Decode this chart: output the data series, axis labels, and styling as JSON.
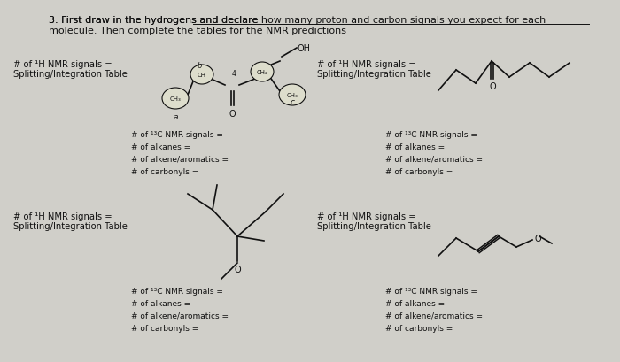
{
  "bg_color": "#d0cfc9",
  "title_prefix": "3. First draw in the hydrogens and declare ",
  "title_underlined1": "how many proton and carbon signals you expect for each",
  "title_line2_underlined": "molecule.",
  "title_line2_rest": " Then complete the tables for the NMR predictions",
  "h_nmr_line1": "# of ¹H NMR signals =",
  "h_nmr_line2": "Splitting/Integration Table",
  "c13_labels": [
    "# of ¹³C NMR signals =",
    "# of alkanes =",
    "# of alkene/aromatics =",
    "# of carbonyls ="
  ],
  "font_size_title": 8.0,
  "font_size_body": 7.2,
  "font_size_small": 6.5,
  "text_color": "#111111"
}
